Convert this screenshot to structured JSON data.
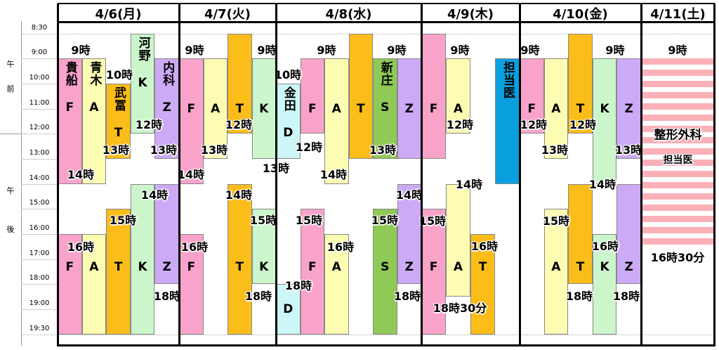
{
  "periods": [
    {
      "chars": [
        "午",
        "前"
      ]
    },
    {
      "chars": [
        "午",
        "後"
      ]
    }
  ],
  "times": [
    "8:30",
    "9:00",
    "10:00",
    "11:00",
    "12:00",
    "13:00",
    "14:00",
    "15:00",
    "16:00",
    "17:00",
    "18:00",
    "19:00",
    "19:30"
  ],
  "days": [
    {
      "date": "4/6(月)",
      "blocks": [
        {
          "name": "貴船",
          "letter": "F",
          "color": "#f9a3cb"
        },
        {
          "name": "青木",
          "letter": "A",
          "color": "#fdfcb3"
        },
        {
          "name": "武冨",
          "letter": "T",
          "color": "#fbbd1a"
        },
        {
          "name": "河野",
          "letter": "K",
          "color": "#cbf6cb"
        },
        {
          "name": "内科",
          "letter": "Z",
          "color": "#cdaaf6"
        },
        {
          "letter": "F",
          "color": "#f9a3cb"
        },
        {
          "letter": "A",
          "color": "#fdfcb3"
        },
        {
          "letter": "T",
          "color": "#fbbd1a"
        },
        {
          "letter": "K",
          "color": "#cbf6cb"
        },
        {
          "letter": "Z",
          "color": "#cdaaf6"
        }
      ],
      "notes": [
        "9時",
        "10時",
        "12時",
        "13時",
        "13時",
        "14時",
        "14時",
        "15時",
        "16時",
        "18時"
      ]
    },
    {
      "date": "4/7(火)",
      "blocks": [
        {
          "letter": "F",
          "color": "#f9a3cb"
        },
        {
          "letter": "A",
          "color": "#fdfcb3"
        },
        {
          "letter": "T",
          "color": "#fbbd1a"
        },
        {
          "letter": "K",
          "color": "#cbf6cb"
        },
        {
          "letter": "F",
          "color": "#f9a3cb"
        },
        {
          "letter": "T",
          "color": "#fbbd1a"
        },
        {
          "letter": "K",
          "color": "#cbf6cb"
        }
      ],
      "notes": [
        "9時",
        "9時",
        "12時",
        "13時",
        "13時",
        "14時",
        "14時",
        "15時",
        "16時",
        "18時"
      ]
    },
    {
      "date": "4/8(水)",
      "blocks": [
        {
          "name": "金田",
          "letter": "D",
          "color": "#cdf6f8"
        },
        {
          "letter": "F",
          "color": "#f9a3cb"
        },
        {
          "letter": "A",
          "color": "#fdfcb3"
        },
        {
          "letter": "T",
          "color": "#fbbd1a"
        },
        {
          "name": "新庄",
          "letter": "S",
          "color": "#8fc956"
        },
        {
          "letter": "Z",
          "color": "#cdaaf6"
        },
        {
          "letter": "D",
          "color": "#cdf6f8"
        },
        {
          "letter": "F",
          "color": "#f9a3cb"
        },
        {
          "letter": "A",
          "color": "#fdfcb3"
        },
        {
          "letter": "S",
          "color": "#8fc956"
        },
        {
          "letter": "Z",
          "color": "#cdaaf6"
        }
      ],
      "notes": [
        "10時",
        "9時",
        "9時",
        "12時",
        "13時",
        "14時",
        "14時",
        "15時",
        "15時",
        "16時",
        "18時",
        "18時"
      ]
    },
    {
      "date": "4/9(木)",
      "blocks": [
        {
          "letter": "F",
          "color": "#f9a3cb"
        },
        {
          "letter": "A",
          "color": "#fdfcb3"
        },
        {
          "name": "担当医",
          "color": "#0aa0e0"
        },
        {
          "letter": "F",
          "color": "#f9a3cb"
        },
        {
          "letter": "A",
          "color": "#fdfcb3"
        },
        {
          "letter": "T",
          "color": "#fbbd1a"
        }
      ],
      "notes": [
        "9時",
        "12時",
        "14時",
        "15時",
        "16時",
        "18時30分"
      ]
    },
    {
      "date": "4/10(金)",
      "blocks": [
        {
          "letter": "F",
          "color": "#f9a3cb"
        },
        {
          "letter": "A",
          "color": "#fdfcb3"
        },
        {
          "letter": "T",
          "color": "#fbbd1a"
        },
        {
          "letter": "K",
          "color": "#cbf6cb"
        },
        {
          "letter": "Z",
          "color": "#cdaaf6"
        },
        {
          "letter": "A",
          "color": "#fdfcb3"
        },
        {
          "letter": "T",
          "color": "#fbbd1a"
        },
        {
          "letter": "K",
          "color": "#cbf6cb"
        },
        {
          "letter": "Z",
          "color": "#cdaaf6"
        }
      ],
      "notes": [
        "9時",
        "9時",
        "12時",
        "12時",
        "13時",
        "13時",
        "14時",
        "15時",
        "16時",
        "18時",
        "18時"
      ]
    },
    {
      "date": "4/11(土)",
      "blocks": [
        {
          "name": "整形外科",
          "letter": "担当医",
          "color": "#fbb0b8"
        }
      ],
      "notes": [
        "9時",
        "16時30分"
      ]
    }
  ]
}
